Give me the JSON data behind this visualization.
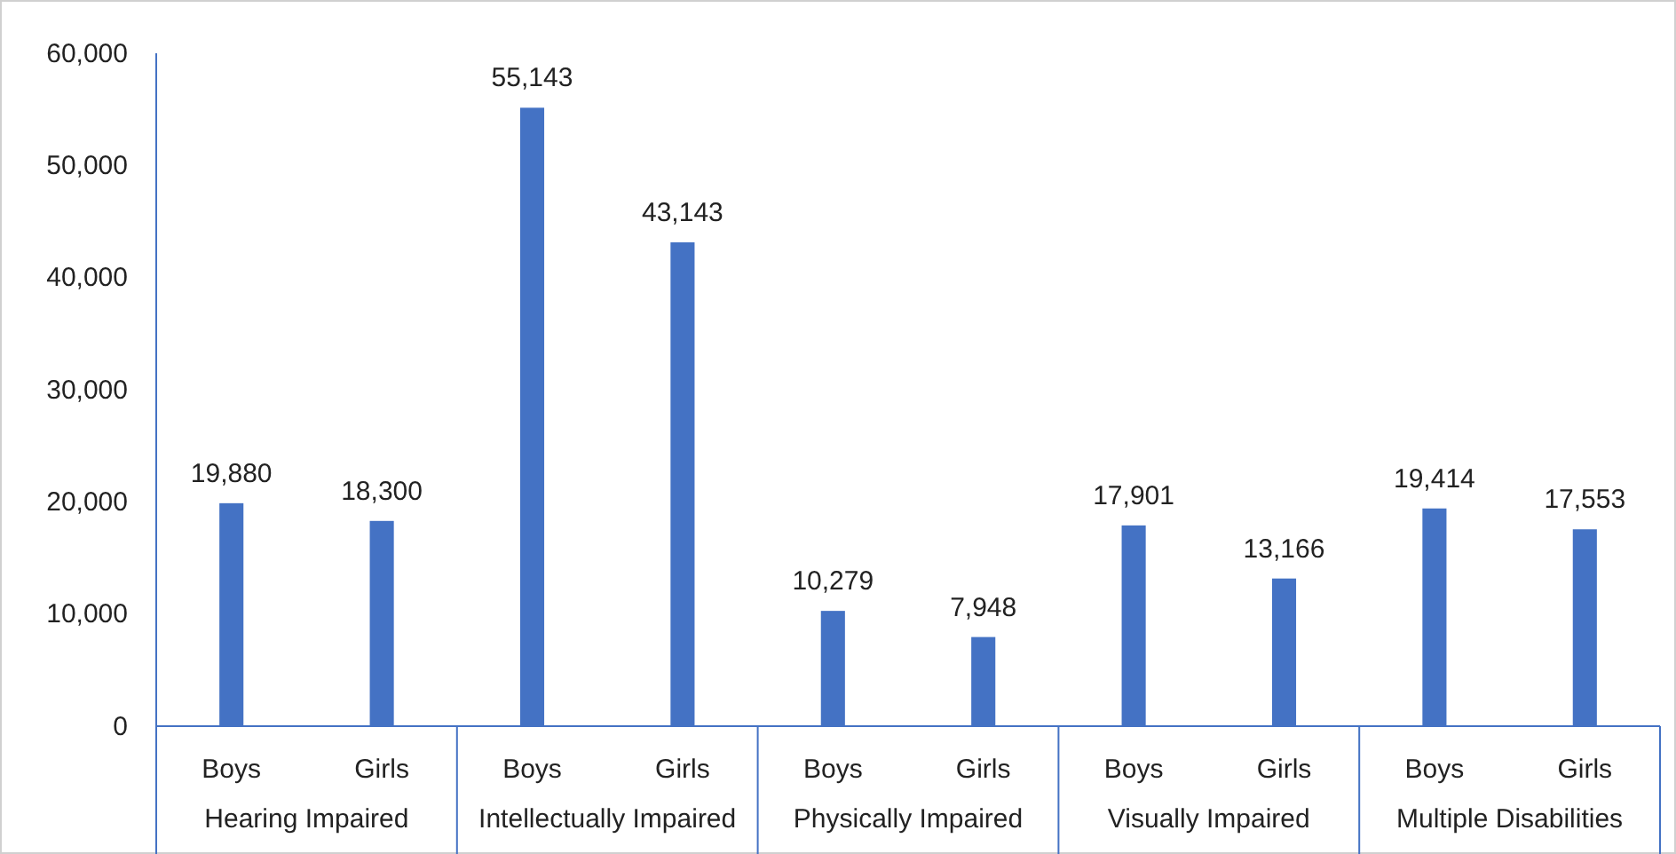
{
  "chart_data": {
    "type": "bar",
    "categories": [
      "Boys",
      "Girls",
      "Boys",
      "Girls",
      "Boys",
      "Girls",
      "Boys",
      "Girls",
      "Boys",
      "Girls"
    ],
    "values": [
      19880,
      18300,
      55143,
      43143,
      10279,
      7948,
      17901,
      13166,
      19414,
      17553
    ],
    "color": "#4472c4",
    "ylim": [
      0,
      60000
    ],
    "yticks": [
      {
        "value": 0,
        "label": "0"
      },
      {
        "value": 10000,
        "label": "10,000"
      },
      {
        "value": 20000,
        "label": "20,000"
      },
      {
        "value": 30000,
        "label": "30,000"
      },
      {
        "value": 40000,
        "label": "40,000"
      },
      {
        "value": 50000,
        "label": "50,000"
      },
      {
        "value": 60000,
        "label": "60,000"
      }
    ],
    "value_labels": [
      "19,880",
      "18,300",
      "55,143",
      "43,143",
      "10,279",
      "7,948",
      "17,901",
      "13,166",
      "19,414",
      "17,553"
    ],
    "grid": false,
    "annotations": [
      "Hearing Impaired",
      "Intellectually Impaired",
      "Physically Impaired",
      "Visually Impaired",
      "Multiple Disabilities"
    ]
  }
}
